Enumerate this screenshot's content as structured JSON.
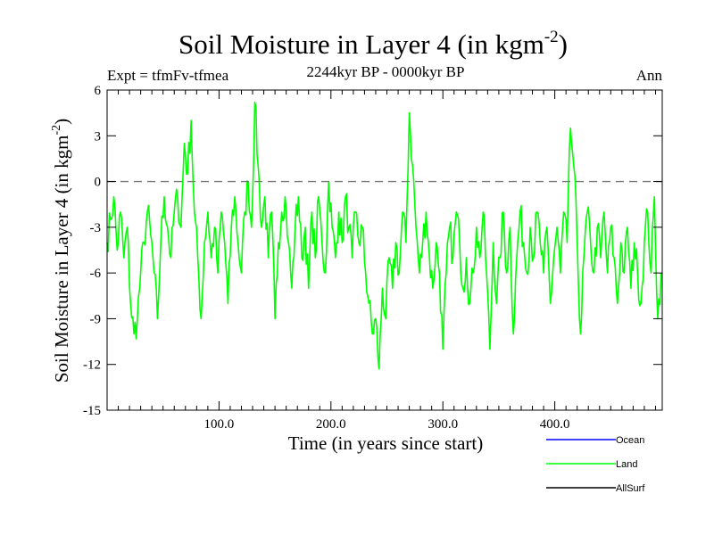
{
  "chart_data": {
    "type": "line",
    "title": "Soil Moisture in Layer 4 (in kgm",
    "title_sup": "-2",
    "title_tail": ")",
    "subtitle_left": "Expt = tfmFv-tfmea",
    "subtitle_center": "2244kyr BP - 0000kyr BP",
    "subtitle_right": "Ann",
    "xlabel": "Time (in years since start)",
    "ylabel": "Soil Moisture in Layer 4 (in kgm",
    "ylabel_sup": "-2",
    "ylabel_tail": ")",
    "xlim": [
      0,
      496
    ],
    "ylim": [
      -15,
      6
    ],
    "xticks": [
      100,
      200,
      300,
      400
    ],
    "xtick_labels": [
      "100.0",
      "200.0",
      "300.0",
      "400.0"
    ],
    "yticks": [
      6,
      3,
      0,
      -3,
      -6,
      -9,
      -12,
      -15
    ],
    "ytick_labels": [
      "6",
      "3",
      "0",
      "-3",
      "-6",
      "-9",
      "-12",
      "-15"
    ],
    "reference_line": 0,
    "legend": [
      {
        "name": "Ocean",
        "color": "#0000ff"
      },
      {
        "name": "Land",
        "color": "#00ff00"
      },
      {
        "name": "AllSurf",
        "color": "#000000"
      }
    ],
    "series": [
      {
        "name": "Land",
        "color": "#00ff00",
        "anchors": [
          [
            0,
            -4
          ],
          [
            3,
            -2.5
          ],
          [
            6,
            -1
          ],
          [
            9,
            -4.5
          ],
          [
            12,
            -2
          ],
          [
            15,
            -5
          ],
          [
            18,
            -3
          ],
          [
            21,
            -8
          ],
          [
            24,
            -10
          ],
          [
            27,
            -9
          ],
          [
            30,
            -6
          ],
          [
            33,
            -4
          ],
          [
            36,
            -2
          ],
          [
            39,
            -3.5
          ],
          [
            42,
            -6
          ],
          [
            45,
            -9
          ],
          [
            48,
            -4
          ],
          [
            51,
            -1
          ],
          [
            54,
            -3
          ],
          [
            57,
            -5
          ],
          [
            60,
            -2
          ],
          [
            63,
            -1
          ],
          [
            66,
            -3
          ],
          [
            69,
            2.5
          ],
          [
            72,
            0.5
          ],
          [
            75,
            4
          ],
          [
            78,
            -2
          ],
          [
            81,
            -5
          ],
          [
            84,
            -9
          ],
          [
            87,
            -4
          ],
          [
            90,
            -2
          ],
          [
            93,
            -5
          ],
          [
            96,
            -3
          ],
          [
            99,
            -6
          ],
          [
            102,
            -2
          ],
          [
            105,
            -4
          ],
          [
            108,
            -8
          ],
          [
            111,
            -3
          ],
          [
            114,
            -1
          ],
          [
            117,
            -4
          ],
          [
            120,
            -6
          ],
          [
            123,
            -2
          ],
          [
            126,
            0
          ],
          [
            129,
            -3
          ],
          [
            132,
            5.2
          ],
          [
            135,
            1
          ],
          [
            138,
            -3
          ],
          [
            141,
            -1
          ],
          [
            144,
            -5
          ],
          [
            147,
            -2
          ],
          [
            150,
            -9
          ],
          [
            153,
            -4
          ],
          [
            156,
            -2
          ],
          [
            159,
            -1
          ],
          [
            162,
            -4
          ],
          [
            165,
            -7
          ],
          [
            168,
            -3
          ],
          [
            171,
            -1
          ],
          [
            174,
            -5
          ],
          [
            177,
            -3
          ],
          [
            180,
            -7
          ],
          [
            183,
            -2
          ],
          [
            186,
            -5
          ],
          [
            189,
            -1
          ],
          [
            192,
            -4
          ],
          [
            195,
            -6
          ],
          [
            198,
            0
          ],
          [
            201,
            -3
          ],
          [
            204,
            -5
          ],
          [
            207,
            -2
          ],
          [
            210,
            -4
          ],
          [
            213,
            -1
          ],
          [
            216,
            -3
          ],
          [
            219,
            -5
          ],
          [
            222,
            -2
          ],
          [
            225,
            -4
          ],
          [
            228,
            -3
          ],
          [
            231,
            -6
          ],
          [
            234,
            -8
          ],
          [
            237,
            -10
          ],
          [
            240,
            -9
          ],
          [
            243,
            -12.3
          ],
          [
            246,
            -7
          ],
          [
            249,
            -9
          ],
          [
            252,
            -5
          ],
          [
            255,
            -7
          ],
          [
            258,
            -4
          ],
          [
            261,
            -6
          ],
          [
            264,
            -2
          ],
          [
            267,
            -4
          ],
          [
            270,
            4.5
          ],
          [
            273,
            1
          ],
          [
            276,
            -3
          ],
          [
            279,
            -6
          ],
          [
            282,
            -4
          ],
          [
            285,
            -2
          ],
          [
            288,
            -5
          ],
          [
            291,
            -7
          ],
          [
            294,
            -4
          ],
          [
            297,
            -6
          ],
          [
            300,
            -11
          ],
          [
            303,
            -6
          ],
          [
            306,
            -3
          ],
          [
            309,
            -5
          ],
          [
            312,
            -2
          ],
          [
            315,
            -4
          ],
          [
            318,
            -7
          ],
          [
            321,
            -5
          ],
          [
            324,
            -8
          ],
          [
            327,
            -6
          ],
          [
            330,
            -3
          ],
          [
            333,
            -5
          ],
          [
            336,
            -2
          ],
          [
            339,
            -6
          ],
          [
            342,
            -11
          ],
          [
            345,
            -4
          ],
          [
            348,
            -8
          ],
          [
            351,
            -5
          ],
          [
            354,
            -2
          ],
          [
            357,
            -6
          ],
          [
            360,
            -3
          ],
          [
            363,
            -10
          ],
          [
            366,
            -5
          ],
          [
            369,
            -2
          ],
          [
            372,
            -4
          ],
          [
            375,
            -6
          ],
          [
            378,
            -3
          ],
          [
            381,
            -5
          ],
          [
            384,
            -2
          ],
          [
            387,
            -4
          ],
          [
            390,
            -6
          ],
          [
            393,
            -3
          ],
          [
            396,
            -8
          ],
          [
            399,
            -5
          ],
          [
            402,
            -3
          ],
          [
            405,
            -6
          ],
          [
            408,
            -2
          ],
          [
            411,
            -4
          ],
          [
            414,
            3.5
          ],
          [
            417,
            1
          ],
          [
            420,
            -4
          ],
          [
            423,
            -10
          ],
          [
            426,
            -5
          ],
          [
            429,
            -2
          ],
          [
            432,
            -4
          ],
          [
            435,
            -6
          ],
          [
            438,
            -3
          ],
          [
            441,
            -5
          ],
          [
            444,
            -2
          ],
          [
            447,
            -6
          ],
          [
            450,
            -3
          ],
          [
            453,
            -5
          ],
          [
            456,
            -8
          ],
          [
            459,
            -4
          ],
          [
            462,
            -6
          ],
          [
            465,
            -3
          ],
          [
            468,
            -7
          ],
          [
            471,
            -4
          ],
          [
            474,
            -6
          ],
          [
            477,
            -8
          ],
          [
            480,
            -4
          ],
          [
            483,
            -2
          ],
          [
            486,
            -6
          ],
          [
            489,
            -1
          ],
          [
            492,
            -9
          ],
          [
            495,
            -6
          ]
        ]
      }
    ]
  }
}
